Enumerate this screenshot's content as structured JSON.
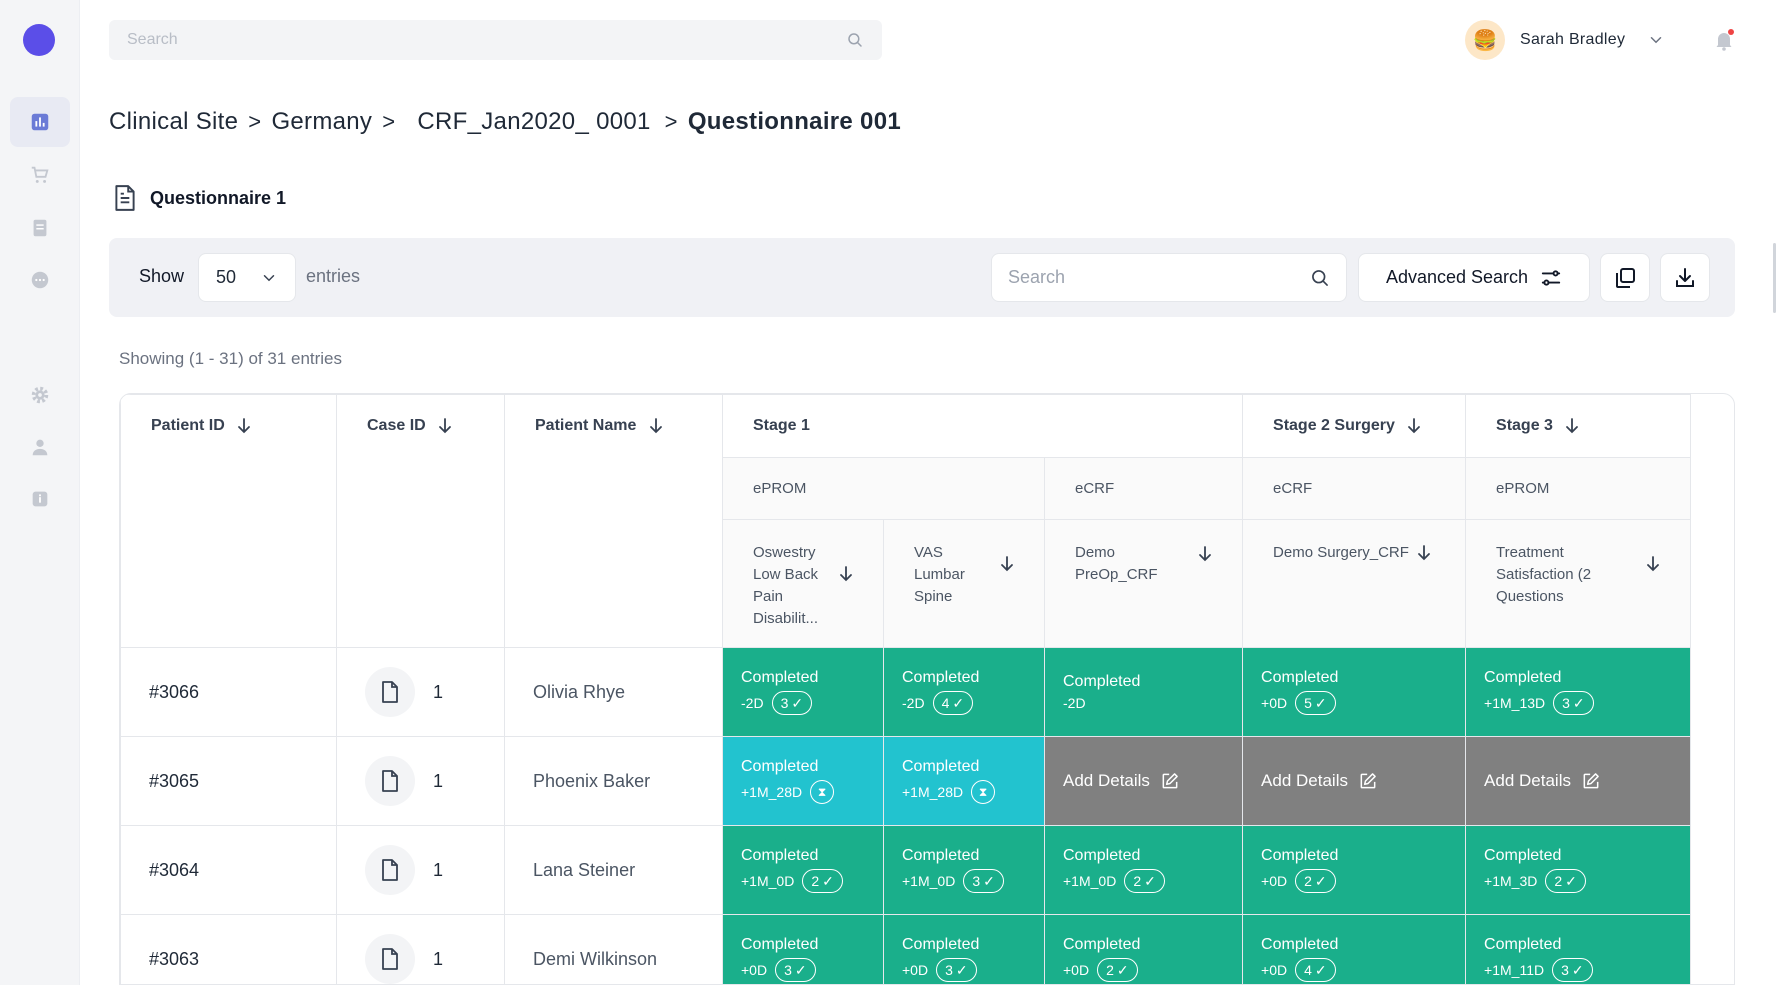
{
  "topbar": {
    "search_placeholder": "Search",
    "user_name": "Sarah Bradley",
    "avatar_glyph": "🍔"
  },
  "breadcrumb": {
    "items": [
      "Clinical Site",
      "Germany",
      "CRF_Jan2020_ 0001",
      "Questionnaire 001"
    ],
    "separator": ">"
  },
  "page": {
    "questionnaire_title": "Questionnaire 1"
  },
  "toolbar": {
    "show_label": "Show",
    "entries_value": "50",
    "entries_label": "entries",
    "search_placeholder": "Search",
    "advanced_search_label": "Advanced Search"
  },
  "showing_text": "Showing (1 - 31) of 31 entries",
  "table": {
    "headers": {
      "patient_id": "Patient ID",
      "case_id": "Case ID",
      "patient_name": "Patient Name",
      "stage1": "Stage 1",
      "stage2": "Stage 2 Surgery",
      "stage3": "Stage 3"
    },
    "subheaders": {
      "s1_eprom": "ePROM",
      "s1_ecrf": "eCRF",
      "s2_ecrf": "eCRF",
      "s3_eprom": "ePROM"
    },
    "forms": {
      "f1": "Oswestry Low Back Pain Disabilit...",
      "f2": "VAS Lumbar Spine",
      "f3": "Demo PreOp_CRF",
      "f4": "Demo Surgery_CRF",
      "f5": "Treatment Satisfaction (2 Questions"
    },
    "rows": [
      {
        "patient_id": "#3066",
        "case_id": "1",
        "name": "Olivia Rhye",
        "c1": {
          "status": "Completed",
          "offset": "-2D",
          "count": "3"
        },
        "c2": {
          "status": "Completed",
          "offset": "-2D",
          "count": "4"
        },
        "c3": {
          "status": "Completed",
          "offset": "-2D"
        },
        "c4": {
          "status": "Completed",
          "offset": "+0D",
          "count": "5"
        },
        "c5": {
          "status": "Completed",
          "offset": "+1M_13D",
          "count": "3"
        }
      },
      {
        "patient_id": "#3065",
        "case_id": "1",
        "name": "Phoenix Baker",
        "c1": {
          "status": "Completed",
          "offset": "+1M_28D"
        },
        "c2": {
          "status": "Completed",
          "offset": "+1M_28D"
        },
        "c3": {
          "label": "Add Details"
        },
        "c4": {
          "label": "Add Details"
        },
        "c5": {
          "label": "Add Details"
        }
      },
      {
        "patient_id": "#3064",
        "case_id": "1",
        "name": "Lana Steiner",
        "c1": {
          "status": "Completed",
          "offset": "+1M_0D",
          "count": "2"
        },
        "c2": {
          "status": "Completed",
          "offset": "+1M_0D",
          "count": "3"
        },
        "c3": {
          "status": "Completed",
          "offset": "+1M_0D",
          "count": "2"
        },
        "c4": {
          "status": "Completed",
          "offset": "+0D",
          "count": "2"
        },
        "c5": {
          "status": "Completed",
          "offset": "+1M_3D",
          "count": "2"
        }
      },
      {
        "patient_id": "#3063",
        "case_id": "1",
        "name": "Demi Wilkinson",
        "c1": {
          "status": "Completed",
          "offset": "+0D",
          "count": "3"
        },
        "c2": {
          "status": "Completed",
          "offset": "+0D",
          "count": "3"
        },
        "c3": {
          "status": "Completed",
          "offset": "+0D",
          "count": "2"
        },
        "c4": {
          "status": "Completed",
          "offset": "+0D",
          "count": "4"
        },
        "c5": {
          "status": "Completed",
          "offset": "+1M_11D",
          "count": "3"
        }
      }
    ]
  },
  "colors": {
    "accent": "#5b4ee8",
    "completed": "#1aaf8b",
    "pending": "#22c3cf",
    "add_details": "#808080"
  }
}
